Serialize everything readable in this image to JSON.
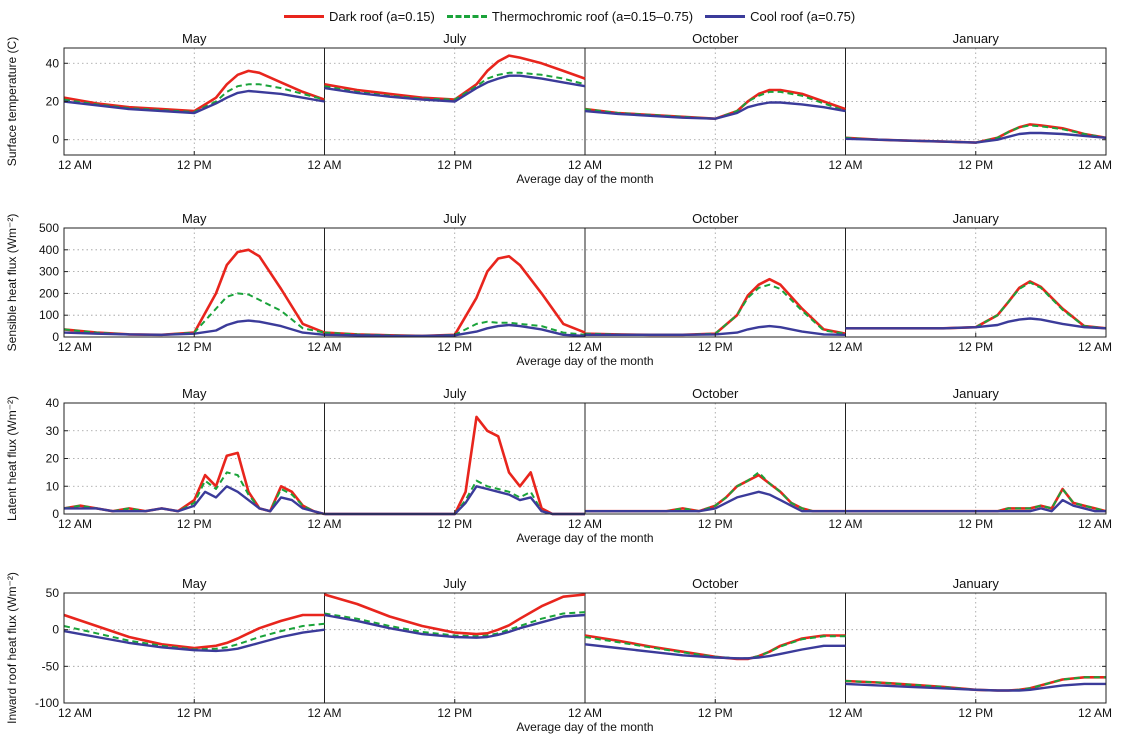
{
  "legend": {
    "items": [
      {
        "label": "Dark roof (a=0.15)",
        "color": "#e8251d",
        "style": "solid"
      },
      {
        "label": "Thermochromic roof (a=0.15–0.75)",
        "color": "#1aa33a",
        "style": "dashed"
      },
      {
        "label": "Cool roof (a=0.75)",
        "color": "#3b3b9a",
        "style": "solid"
      }
    ]
  },
  "chart_data": [
    {
      "type": "line",
      "ylabel": "Surface temperature (C)",
      "xlabel": "Average day of the month",
      "ylim": [
        -8,
        48
      ],
      "yticks": [
        0,
        20,
        40
      ],
      "months": [
        "May",
        "July",
        "October",
        "January"
      ],
      "x_ticks": [
        "12 AM",
        "12 PM",
        "12 AM",
        "12 PM",
        "12 AM",
        "12 PM",
        "12 AM",
        "12 PM",
        "12 AM"
      ],
      "x_hours": [
        0,
        3,
        6,
        9,
        12,
        14,
        15,
        16,
        17,
        18,
        20,
        22,
        24
      ],
      "grid": true,
      "series": [
        {
          "name": "Dark roof (a=0.15)",
          "values": [
            [
              22,
              19,
              17,
              16,
              15,
              22,
              29,
              34,
              36,
              35,
              30,
              25,
              21
            ],
            [
              29,
              26,
              24,
              22,
              21,
              29,
              36,
              41,
              44,
              43,
              40,
              36,
              32
            ],
            [
              16,
              14,
              13,
              12,
              11,
              15,
              20,
              24,
              26,
              26,
              24,
              20,
              16
            ],
            [
              1,
              0,
              -0.5,
              -1,
              -1.5,
              1,
              4,
              6.5,
              8,
              7.5,
              6,
              3,
              1
            ]
          ]
        },
        {
          "name": "Thermochromic roof (a=0.15–0.75)",
          "values": [
            [
              21,
              18.5,
              16.5,
              15.5,
              14.5,
              20,
              25,
              28,
              29,
              29,
              27,
              24,
              21
            ],
            [
              28,
              25,
              23,
              21.5,
              21,
              28,
              32,
              34,
              35,
              35,
              34,
              32,
              29
            ],
            [
              16,
              14,
              13,
              12,
              11,
              15,
              20,
              23,
              25,
              25,
              23,
              19,
              15
            ],
            [
              1,
              0,
              -0.5,
              -1,
              -1.5,
              1,
              4,
              6.5,
              7.5,
              7,
              5.5,
              3,
              1
            ]
          ]
        },
        {
          "name": "Cool roof (a=0.75)",
          "values": [
            [
              20,
              18,
              16,
              15,
              14,
              19,
              22,
              24.5,
              25.5,
              25,
              24,
              22,
              20
            ],
            [
              27,
              24.5,
              22.5,
              21,
              20,
              27,
              30,
              32,
              33.5,
              33.5,
              32,
              30,
              28
            ],
            [
              15,
              13.5,
              12.5,
              11.5,
              11,
              14,
              17,
              18.5,
              19.5,
              19.5,
              18.5,
              17,
              15
            ],
            [
              0.5,
              0,
              -0.5,
              -1,
              -1.5,
              0,
              1.5,
              3,
              3.5,
              3.5,
              3,
              2,
              1
            ]
          ]
        }
      ]
    },
    {
      "type": "line",
      "ylabel": "Sensible heat flux (Wm⁻²)",
      "xlabel": "Average day of the month",
      "ylim": [
        0,
        500
      ],
      "yticks": [
        0,
        100,
        200,
        300,
        400,
        500
      ],
      "months": [
        "May",
        "July",
        "October",
        "January"
      ],
      "x_ticks": [
        "12 AM",
        "12 PM",
        "12 AM",
        "12 PM",
        "12 AM",
        "12 PM",
        "12 AM",
        "12 PM",
        "12 AM"
      ],
      "x_hours": [
        0,
        3,
        6,
        9,
        12,
        14,
        15,
        16,
        17,
        18,
        20,
        22,
        24
      ],
      "grid": true,
      "series": [
        {
          "name": "Dark roof (a=0.15)",
          "values": [
            [
              35,
              20,
              12,
              10,
              20,
              200,
              330,
              390,
              400,
              370,
              220,
              60,
              20
            ],
            [
              20,
              12,
              8,
              5,
              10,
              180,
              300,
              360,
              370,
              330,
              200,
              60,
              20
            ],
            [
              15,
              12,
              10,
              10,
              15,
              100,
              190,
              240,
              265,
              240,
              130,
              35,
              15
            ],
            [
              40,
              40,
              40,
              40,
              45,
              100,
              160,
              225,
              255,
              230,
              130,
              50,
              40
            ]
          ]
        },
        {
          "name": "Thermochromic roof (a=0.15–0.75)",
          "values": [
            [
              35,
              20,
              12,
              10,
              20,
              130,
              185,
              200,
              195,
              170,
              120,
              40,
              20
            ],
            [
              20,
              12,
              8,
              5,
              10,
              60,
              70,
              65,
              65,
              60,
              50,
              20,
              10
            ],
            [
              15,
              12,
              10,
              10,
              15,
              100,
              180,
              225,
              240,
              220,
              120,
              30,
              15
            ],
            [
              40,
              40,
              40,
              40,
              45,
              100,
              160,
              220,
              250,
              225,
              125,
              50,
              40
            ]
          ]
        },
        {
          "name": "Cool roof (a=0.75)",
          "values": [
            [
              20,
              15,
              12,
              10,
              15,
              30,
              55,
              70,
              75,
              70,
              50,
              20,
              10
            ],
            [
              10,
              8,
              5,
              5,
              8,
              25,
              40,
              50,
              55,
              50,
              35,
              10,
              5
            ],
            [
              10,
              10,
              10,
              10,
              12,
              20,
              35,
              45,
              50,
              45,
              25,
              12,
              10
            ],
            [
              40,
              40,
              40,
              40,
              45,
              55,
              70,
              80,
              85,
              80,
              60,
              45,
              40
            ]
          ]
        }
      ]
    },
    {
      "type": "line",
      "ylabel": "Latent heat flux (Wm⁻²)",
      "xlabel": "Average day of the month",
      "ylim": [
        0,
        40
      ],
      "yticks": [
        0,
        10,
        20,
        30,
        40
      ],
      "months": [
        "May",
        "July",
        "October",
        "January"
      ],
      "x_ticks": [
        "12 AM",
        "12 PM",
        "12 AM",
        "12 PM",
        "12 AM",
        "12 PM",
        "12 AM",
        "12 PM",
        "12 AM"
      ],
      "x_hours": [
        0,
        1.5,
        3,
        4.5,
        6,
        7.5,
        9,
        10.5,
        12,
        13,
        14,
        15,
        16,
        17,
        18,
        19,
        20,
        21,
        22,
        23,
        24
      ],
      "grid": true,
      "series": [
        {
          "name": "Dark roof (a=0.15)",
          "values": [
            [
              2,
              3,
              2,
              1,
              2,
              1,
              2,
              1,
              5,
              14,
              10,
              21,
              22,
              8,
              2,
              1,
              10,
              8,
              3,
              1,
              0
            ],
            [
              0,
              0,
              0,
              0,
              0,
              0,
              0,
              0,
              0,
              8,
              35,
              30,
              28,
              15,
              10,
              15,
              2,
              0,
              0,
              0,
              0
            ],
            [
              1,
              1,
              1,
              1,
              1,
              1,
              2,
              1,
              3,
              6,
              10,
              12,
              14,
              11,
              8,
              4,
              2,
              1,
              1,
              1,
              1
            ],
            [
              1,
              1,
              1,
              1,
              1,
              1,
              1,
              1,
              1,
              1,
              1,
              2,
              2,
              2,
              3,
              2,
              9,
              4,
              3,
              2,
              1
            ]
          ]
        },
        {
          "name": "Thermochromic roof (a=0.15–0.75)",
          "values": [
            [
              2,
              3,
              2,
              1,
              2,
              1,
              2,
              1,
              4,
              12,
              9,
              15,
              14,
              7,
              2,
              1,
              9,
              7,
              3,
              1,
              0
            ],
            [
              0,
              0,
              0,
              0,
              0,
              0,
              0,
              0,
              0,
              5,
              12,
              10,
              9,
              8,
              6,
              8,
              1,
              0,
              0,
              0,
              0
            ],
            [
              1,
              1,
              1,
              1,
              1,
              1,
              2,
              1,
              3,
              6,
              10,
              12,
              15,
              11,
              8,
              4,
              2,
              1,
              1,
              1,
              1
            ],
            [
              1,
              1,
              1,
              1,
              1,
              1,
              1,
              1,
              1,
              1,
              1,
              2,
              2,
              2,
              3,
              2,
              9,
              4,
              3,
              2,
              1
            ]
          ]
        },
        {
          "name": "Cool roof (a=0.75)",
          "values": [
            [
              2,
              2,
              2,
              1,
              1,
              1,
              2,
              1,
              3,
              8,
              6,
              10,
              8,
              5,
              2,
              1,
              6,
              5,
              2,
              1,
              0
            ],
            [
              0,
              0,
              0,
              0,
              0,
              0,
              0,
              0,
              0,
              4,
              10,
              9,
              8,
              7,
              5,
              6,
              1,
              0,
              0,
              0,
              0
            ],
            [
              1,
              1,
              1,
              1,
              1,
              1,
              1,
              1,
              2,
              4,
              6,
              7,
              8,
              7,
              5,
              3,
              1,
              1,
              1,
              1,
              1
            ],
            [
              1,
              1,
              1,
              1,
              1,
              1,
              1,
              1,
              1,
              1,
              1,
              1,
              1,
              1,
              2,
              1,
              5,
              3,
              2,
              1,
              1
            ]
          ]
        }
      ]
    },
    {
      "type": "line",
      "ylabel": "Inward roof heat flux (Wm⁻²)",
      "xlabel": "Average day of the month",
      "ylim": [
        -100,
        50
      ],
      "yticks": [
        -100,
        -50,
        0,
        50
      ],
      "months": [
        "May",
        "July",
        "October",
        "January"
      ],
      "x_ticks": [
        "12 AM",
        "12 PM",
        "12 AM",
        "12 PM",
        "12 AM",
        "12 PM",
        "12 AM",
        "12 PM",
        "12 AM"
      ],
      "x_hours": [
        0,
        3,
        6,
        9,
        12,
        14,
        15,
        16,
        17,
        18,
        20,
        22,
        24
      ],
      "grid": true,
      "series": [
        {
          "name": "Dark roof (a=0.15)",
          "values": [
            [
              20,
              5,
              -10,
              -20,
              -25,
              -22,
              -18,
              -12,
              -5,
              2,
              12,
              20,
              20
            ],
            [
              48,
              35,
              18,
              5,
              -4,
              -6,
              -5,
              0,
              6,
              15,
              32,
              45,
              48
            ],
            [
              -8,
              -15,
              -23,
              -30,
              -37,
              -40,
              -40,
              -36,
              -30,
              -22,
              -12,
              -8,
              -8
            ],
            [
              -70,
              -72,
              -75,
              -78,
              -82,
              -83,
              -83,
              -82,
              -80,
              -76,
              -68,
              -65,
              -65
            ]
          ]
        },
        {
          "name": "Thermochromic roof (a=0.15–0.75)",
          "values": [
            [
              5,
              -5,
              -15,
              -22,
              -27,
              -26,
              -24,
              -20,
              -15,
              -10,
              -2,
              5,
              8
            ],
            [
              22,
              15,
              5,
              -3,
              -8,
              -9,
              -8,
              -5,
              0,
              5,
              15,
              22,
              24
            ],
            [
              -10,
              -17,
              -24,
              -31,
              -37,
              -39,
              -39,
              -36,
              -30,
              -23,
              -13,
              -9,
              -9
            ],
            [
              -70,
              -72,
              -75,
              -78,
              -82,
              -83,
              -83,
              -82,
              -80,
              -76,
              -68,
              -65,
              -65
            ]
          ]
        },
        {
          "name": "Cool roof (a=0.75)",
          "values": [
            [
              -2,
              -10,
              -18,
              -24,
              -28,
              -29,
              -28,
              -26,
              -22,
              -18,
              -10,
              -4,
              0
            ],
            [
              20,
              12,
              2,
              -6,
              -10,
              -11,
              -10,
              -7,
              -3,
              2,
              10,
              18,
              20
            ],
            [
              -20,
              -25,
              -30,
              -35,
              -38,
              -39,
              -39,
              -38,
              -36,
              -33,
              -27,
              -22,
              -22
            ],
            [
              -74,
              -76,
              -78,
              -80,
              -82,
              -83,
              -83,
              -83,
              -82,
              -80,
              -76,
              -74,
              -74
            ]
          ]
        }
      ]
    }
  ]
}
